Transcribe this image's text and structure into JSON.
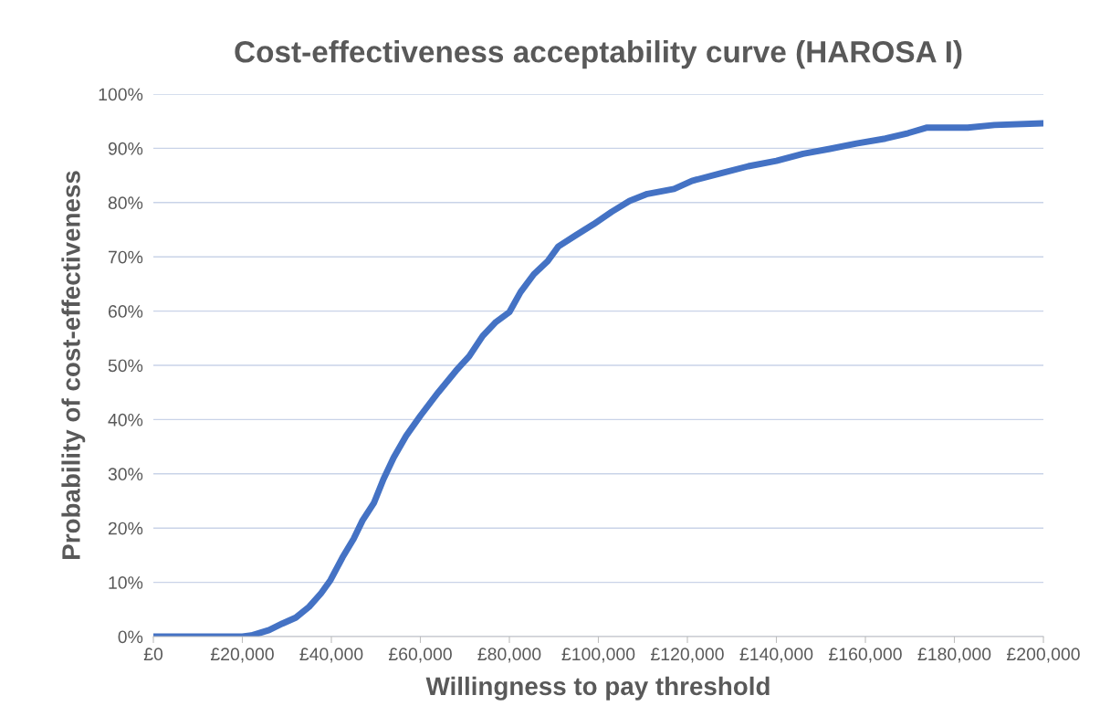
{
  "chart_data": {
    "type": "line",
    "title": "Cost-effectiveness acceptability curve (HAROSA I)",
    "xlabel": "Willingness to pay threshold",
    "ylabel": "Probability of cost-effectiveness",
    "x": [
      0,
      5000,
      10000,
      15000,
      20000,
      22000,
      24000,
      26000,
      29000,
      32000,
      35000,
      37700,
      39800,
      42500,
      45000,
      47000,
      49600,
      51700,
      54000,
      56800,
      60000,
      64000,
      68000,
      71000,
      74000,
      77000,
      80000,
      82500,
      85500,
      88600,
      91000,
      94800,
      98900,
      103000,
      107000,
      111000,
      117000,
      121000,
      127600,
      133700,
      140000,
      146000,
      152000,
      158000,
      164500,
      169600,
      173700,
      183000,
      189000,
      200000
    ],
    "series": [
      {
        "color": "#4472c4",
        "values": [
          0,
          0,
          0,
          0,
          0,
          0.2,
          0.7,
          1.2,
          2.4,
          3.5,
          5.5,
          8,
          10.4,
          14.6,
          18,
          21.4,
          24.7,
          29,
          33,
          37,
          40.7,
          45,
          49,
          51.7,
          55.4,
          58,
          59.8,
          63.5,
          66.8,
          69.2,
          71.9,
          73.9,
          76,
          78.3,
          80.3,
          81.6,
          82.5,
          84,
          85.4,
          86.7,
          87.7,
          89,
          89.9,
          90.9,
          91.8,
          92.8,
          93.8,
          93.8,
          94.3,
          94.6
        ]
      }
    ],
    "xlim": [
      0,
      200000
    ],
    "xticks": [
      {
        "value": 0,
        "label": "£0"
      },
      {
        "value": 20000,
        "label": "£20,000"
      },
      {
        "value": 40000,
        "label": "£40,000"
      },
      {
        "value": 60000,
        "label": "£60,000"
      },
      {
        "value": 80000,
        "label": "£80,000"
      },
      {
        "value": 100000,
        "label": "£100,000"
      },
      {
        "value": 120000,
        "label": "£120,000"
      },
      {
        "value": 140000,
        "label": "£140,000"
      },
      {
        "value": 160000,
        "label": "£160,000"
      },
      {
        "value": 180000,
        "label": "£180,000"
      },
      {
        "value": 200000,
        "label": "£200,000"
      }
    ],
    "ylim": [
      0,
      100
    ],
    "yticks": [
      {
        "value": 0,
        "label": "0%"
      },
      {
        "value": 10,
        "label": "10%"
      },
      {
        "value": 20,
        "label": "20%"
      },
      {
        "value": 30,
        "label": "30%"
      },
      {
        "value": 40,
        "label": "40%"
      },
      {
        "value": 50,
        "label": "50%"
      },
      {
        "value": 60,
        "label": "60%"
      },
      {
        "value": 70,
        "label": "70%"
      },
      {
        "value": 80,
        "label": "80%"
      },
      {
        "value": 90,
        "label": "90%"
      },
      {
        "value": 100,
        "label": "100%"
      }
    ],
    "grid": "y",
    "marker": "none",
    "line_style": "solid"
  }
}
